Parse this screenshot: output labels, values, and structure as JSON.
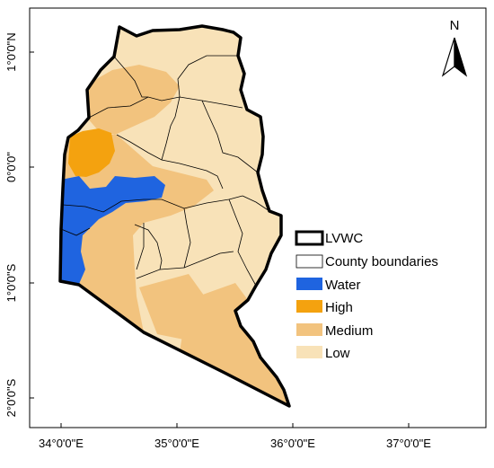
{
  "map": {
    "north_label": "N",
    "x_ticks": [
      "34°0'0\"E",
      "35°0'0\"E",
      "36°0'0\"E",
      "37°0'0\"E"
    ],
    "y_ticks": [
      "1°0'0\"N",
      "0°0'0\"",
      "1°0'0\"S",
      "2°0'0\"S"
    ],
    "legend": [
      {
        "key": "lvwc",
        "label": "LVWC",
        "color": "#ffffff"
      },
      {
        "key": "county",
        "label": "County boundaries",
        "color": "#ffffff"
      },
      {
        "key": "water",
        "label": "Water",
        "color": "#1f64e0"
      },
      {
        "key": "high",
        "label": "High",
        "color": "#f4a20f"
      },
      {
        "key": "medium",
        "label": "Medium",
        "color": "#f2c37e"
      },
      {
        "key": "low",
        "label": "Low",
        "color": "#f8e2b8"
      }
    ]
  }
}
